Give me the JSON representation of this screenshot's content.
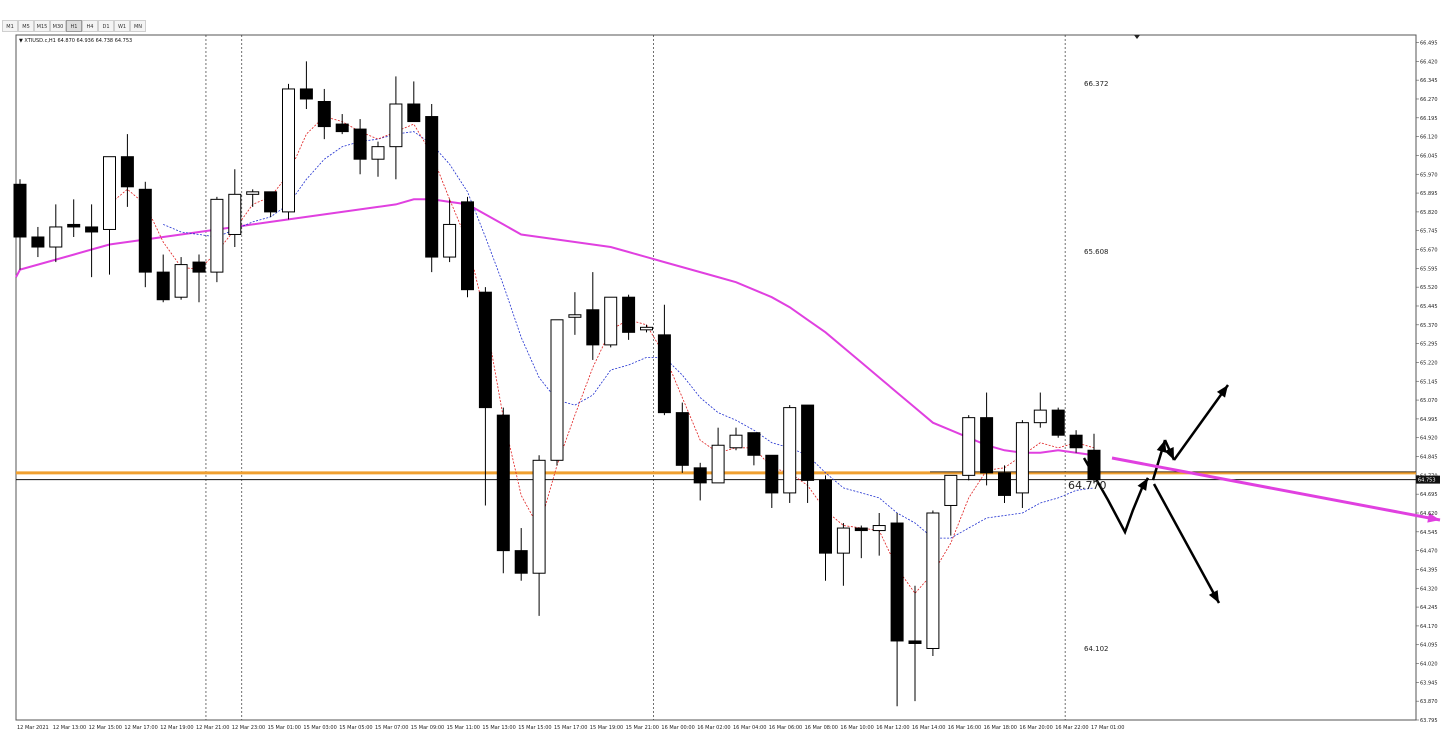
{
  "toolbar": {
    "timeframes": [
      "M1",
      "M5",
      "M15",
      "M30",
      "H1",
      "H4",
      "D1",
      "W1",
      "MN"
    ],
    "active": "H1"
  },
  "chart_data": {
    "type": "candlestick",
    "info": "▼ XTIUSD.c,H1  64.870 64.936 64.738 64.753",
    "ylim": [
      63.795,
      66.525
    ],
    "y_ticks": [
      66.495,
      66.42,
      66.345,
      66.27,
      66.195,
      66.12,
      66.045,
      65.97,
      65.895,
      65.82,
      65.745,
      65.67,
      65.595,
      65.52,
      65.445,
      65.37,
      65.295,
      65.22,
      65.145,
      65.07,
      64.995,
      64.92,
      64.845,
      64.77,
      64.695,
      64.62,
      64.545,
      64.47,
      64.395,
      64.32,
      64.245,
      64.17,
      64.095,
      64.02,
      63.945,
      63.87,
      63.795
    ],
    "x_ticks": [
      "12 Mar 2021",
      "12 Mar 13:00",
      "12 Mar 15:00",
      "12 Mar 17:00",
      "12 Mar 19:00",
      "12 Mar 21:00",
      "12 Mar 23:00",
      "15 Mar 01:00",
      "15 Mar 03:00",
      "15 Mar 05:00",
      "15 Mar 07:00",
      "15 Mar 09:00",
      "15 Mar 11:00",
      "15 Mar 13:00",
      "15 Mar 15:00",
      "15 Mar 17:00",
      "15 Mar 19:00",
      "15 Mar 21:00",
      "16 Mar 00:00",
      "16 Mar 02:00",
      "16 Mar 04:00",
      "16 Mar 06:00",
      "16 Mar 08:00",
      "16 Mar 10:00",
      "16 Mar 12:00",
      "16 Mar 14:00",
      "16 Mar 16:00",
      "16 Mar 18:00",
      "16 Mar 20:00",
      "16 Mar 22:00",
      "17 Mar 01:00"
    ],
    "candles": [
      [
        65.93,
        65.95,
        65.59,
        65.72
      ],
      [
        65.72,
        65.76,
        65.64,
        65.68
      ],
      [
        65.68,
        65.85,
        65.62,
        65.76
      ],
      [
        65.77,
        65.87,
        65.72,
        65.76
      ],
      [
        65.76,
        65.85,
        65.56,
        65.74
      ],
      [
        65.75,
        66.04,
        65.57,
        66.04
      ],
      [
        66.04,
        66.13,
        65.84,
        65.92
      ],
      [
        65.91,
        65.94,
        65.52,
        65.58
      ],
      [
        65.58,
        65.65,
        65.46,
        65.47
      ],
      [
        65.48,
        65.64,
        65.47,
        65.61
      ],
      [
        65.62,
        65.65,
        65.46,
        65.58
      ],
      [
        65.58,
        65.88,
        65.54,
        65.87
      ],
      [
        65.73,
        65.99,
        65.68,
        65.89
      ],
      [
        65.89,
        65.91,
        65.84,
        65.9
      ],
      [
        65.9,
        65.9,
        65.8,
        65.82
      ],
      [
        65.82,
        66.33,
        65.79,
        66.31
      ],
      [
        66.31,
        66.42,
        66.23,
        66.27
      ],
      [
        66.26,
        66.31,
        66.11,
        66.16
      ],
      [
        66.17,
        66.21,
        66.13,
        66.14
      ],
      [
        66.15,
        66.19,
        65.97,
        66.03
      ],
      [
        66.03,
        66.1,
        65.96,
        66.08
      ],
      [
        66.08,
        66.36,
        65.95,
        66.25
      ],
      [
        66.25,
        66.34,
        66.19,
        66.18
      ],
      [
        66.2,
        66.25,
        65.58,
        65.64
      ],
      [
        65.64,
        65.87,
        65.62,
        65.77
      ],
      [
        65.86,
        65.88,
        65.48,
        65.51
      ],
      [
        65.5,
        65.52,
        64.65,
        65.04
      ],
      [
        65.01,
        65.04,
        64.38,
        64.47
      ],
      [
        64.47,
        64.56,
        64.35,
        64.38
      ],
      [
        64.38,
        64.85,
        64.21,
        64.83
      ],
      [
        64.83,
        65.39,
        64.81,
        65.39
      ],
      [
        65.4,
        65.5,
        65.33,
        65.41
      ],
      [
        65.43,
        65.58,
        65.23,
        65.29
      ],
      [
        65.29,
        65.47,
        65.28,
        65.48
      ],
      [
        65.48,
        65.49,
        65.31,
        65.34
      ],
      [
        65.35,
        65.37,
        65.34,
        65.36
      ],
      [
        65.33,
        65.45,
        65.01,
        65.02
      ],
      [
        65.02,
        65.06,
        64.78,
        64.81
      ],
      [
        64.8,
        64.82,
        64.67,
        64.74
      ],
      [
        64.74,
        64.96,
        64.74,
        64.89
      ],
      [
        64.88,
        64.96,
        64.87,
        64.93
      ],
      [
        64.94,
        64.94,
        64.81,
        64.85
      ],
      [
        64.85,
        64.85,
        64.64,
        64.7
      ],
      [
        64.7,
        65.05,
        64.66,
        65.04
      ],
      [
        65.05,
        65.05,
        64.66,
        64.75
      ],
      [
        64.75,
        64.77,
        64.35,
        64.46
      ],
      [
        64.46,
        64.58,
        64.33,
        64.56
      ],
      [
        64.56,
        64.57,
        64.44,
        64.55
      ],
      [
        64.55,
        64.62,
        64.45,
        64.57
      ],
      [
        64.58,
        64.62,
        63.85,
        64.11
      ],
      [
        64.11,
        64.33,
        63.87,
        64.1
      ],
      [
        64.08,
        64.63,
        64.05,
        64.62
      ],
      [
        64.65,
        64.77,
        64.53,
        64.77
      ],
      [
        64.77,
        65.01,
        64.75,
        65.0
      ],
      [
        65.0,
        65.1,
        64.73,
        64.78
      ],
      [
        64.78,
        64.81,
        64.66,
        64.69
      ],
      [
        64.7,
        64.99,
        64.64,
        64.98
      ],
      [
        64.98,
        65.1,
        64.96,
        65.03
      ],
      [
        65.03,
        65.04,
        64.92,
        64.93
      ],
      [
        64.93,
        64.95,
        64.86,
        64.88
      ],
      [
        64.87,
        64.936,
        64.738,
        64.753
      ]
    ],
    "ma_pink": [
      65.59,
      65.61,
      65.63,
      65.65,
      65.67,
      65.69,
      65.7,
      65.71,
      65.72,
      65.73,
      65.74,
      65.75,
      65.76,
      65.77,
      65.78,
      65.79,
      65.8,
      65.81,
      65.82,
      65.83,
      65.84,
      65.85,
      65.87,
      65.87,
      65.86,
      65.85,
      65.81,
      65.77,
      65.73,
      65.72,
      65.71,
      65.7,
      65.69,
      65.68,
      65.66,
      65.64,
      65.62,
      65.6,
      65.58,
      65.56,
      65.54,
      65.51,
      65.48,
      65.44,
      65.39,
      65.34,
      65.28,
      65.22,
      65.16,
      65.1,
      65.04,
      64.98,
      64.95,
      64.92,
      64.89,
      64.87,
      64.86,
      64.86,
      64.87,
      64.86,
      64.85
    ],
    "ma_red": [
      null,
      null,
      null,
      null,
      null,
      65.85,
      65.91,
      65.85,
      65.7,
      65.6,
      65.59,
      65.66,
      65.75,
      65.85,
      65.88,
      65.97,
      66.13,
      66.2,
      66.18,
      66.14,
      66.11,
      66.14,
      66.17,
      66.05,
      65.87,
      65.7,
      65.4,
      65.0,
      64.69,
      64.56,
      64.81,
      65.01,
      65.2,
      65.35,
      65.39,
      65.37,
      65.25,
      65.08,
      64.91,
      64.86,
      64.88,
      64.88,
      64.8,
      64.78,
      64.73,
      64.63,
      64.57,
      64.56,
      64.55,
      64.4,
      64.3,
      64.38,
      64.5,
      64.68,
      64.79,
      64.8,
      64.85,
      64.9,
      64.88,
      64.9,
      64.88
    ],
    "ma_blue": [
      null,
      null,
      null,
      null,
      null,
      null,
      null,
      null,
      65.77,
      65.74,
      65.73,
      65.72,
      65.75,
      65.78,
      65.8,
      65.85,
      65.95,
      66.03,
      66.08,
      66.1,
      66.11,
      66.13,
      66.14,
      66.09,
      66.01,
      65.9,
      65.72,
      65.53,
      65.32,
      65.16,
      65.07,
      65.05,
      65.09,
      65.19,
      65.21,
      65.24,
      65.24,
      65.17,
      65.08,
      65.02,
      64.99,
      64.95,
      64.9,
      64.88,
      64.85,
      64.78,
      64.72,
      64.7,
      64.68,
      64.62,
      64.58,
      64.52,
      64.52,
      64.56,
      64.6,
      64.61,
      64.62,
      64.66,
      64.68,
      64.71,
      64.72
    ],
    "h_lines": {
      "orange": 64.78,
      "black": 64.77,
      "bid": 64.753
    },
    "price_tag": "64.753",
    "vlines_at": [
      10.5,
      12.5,
      35.5,
      58.5
    ],
    "annotations": [
      "66.372",
      "65.608",
      "64.770",
      "64.102"
    ],
    "arrows": "projection"
  }
}
